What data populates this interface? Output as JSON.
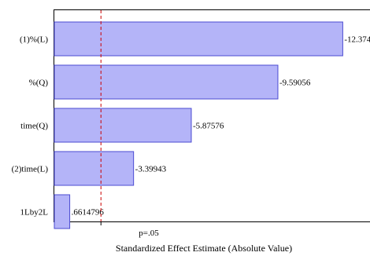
{
  "chart_data": {
    "type": "bar",
    "orientation": "horizontal",
    "categories": [
      "(1)%(L)",
      "%(Q)",
      "time(Q)",
      "(2)time(L)",
      "1Lby2L"
    ],
    "values": [
      12.374,
      9.59056,
      5.87576,
      3.39943,
      0.6614796
    ],
    "value_labels": [
      "-12.374",
      "-9.59056",
      "-5.87576",
      "-3.39943",
      ".6614796"
    ],
    "xlabel": "Standardized Effect Estimate (Absolute Value)",
    "ylabel": "",
    "xlim": [
      0,
      13
    ],
    "reference_line": {
      "value": 2.0,
      "label": "p=.05",
      "color": "#cc0000",
      "style": "dashed"
    },
    "bar_fill": "#b4b4f8",
    "bar_stroke": "#4b4bd2",
    "grid": false
  }
}
